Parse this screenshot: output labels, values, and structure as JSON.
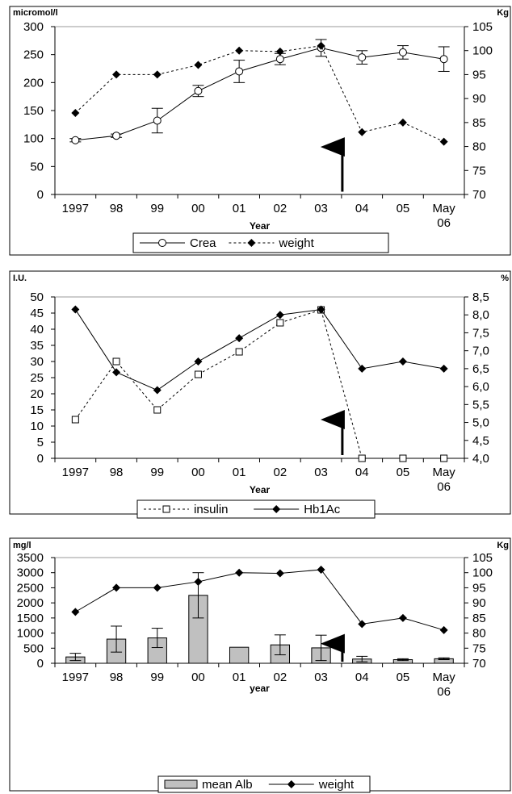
{
  "chart_data": [
    {
      "type": "line",
      "left_unit": "micromol/l",
      "right_unit": "Kg",
      "xlabel": "Year",
      "categories": [
        "1997",
        "98",
        "99",
        "00",
        "01",
        "02",
        "03",
        "04",
        "05",
        "May|06"
      ],
      "left_ticks": [
        "0",
        "50",
        "100",
        "150",
        "200",
        "250",
        "300"
      ],
      "right_ticks": [
        "70",
        "75",
        "80",
        "85",
        "90",
        "95",
        "100",
        "105"
      ],
      "ylim_left": [
        0,
        300
      ],
      "ylim_right": [
        70,
        105
      ],
      "grid": "top line only",
      "legend_placement": "bottom-center",
      "series": [
        {
          "name": "Crea",
          "axis": "left",
          "style": "solid-open-circle",
          "values": [
            97,
            105,
            132,
            185,
            220,
            242,
            262,
            245,
            254,
            242
          ],
          "error": [
            3,
            3,
            22,
            10,
            20,
            10,
            15,
            12,
            12,
            22
          ]
        },
        {
          "name": "weight",
          "axis": "right",
          "style": "dotted-diamond",
          "values": [
            87,
            95,
            95,
            97,
            100,
            99.8,
            101,
            83,
            85,
            81
          ]
        }
      ],
      "arrow": {
        "x_between": [
          "03",
          "04"
        ],
        "y_from": 5,
        "y_to": 85,
        "axis": "left"
      }
    },
    {
      "type": "line",
      "left_unit": "I.U.",
      "right_unit": "%",
      "xlabel": "Year",
      "categories": [
        "1997",
        "98",
        "99",
        "00",
        "01",
        "02",
        "03",
        "04",
        "05",
        "May|06"
      ],
      "left_ticks": [
        "0",
        "5",
        "10",
        "15",
        "20",
        "25",
        "30",
        "35",
        "40",
        "45",
        "50"
      ],
      "right_ticks": [
        "4,0",
        "4,5",
        "5,0",
        "5,5",
        "6,0",
        "6,5",
        "7,0",
        "7,5",
        "8,0",
        "8,5"
      ],
      "ylim_left": [
        0,
        50
      ],
      "ylim_right": [
        4.0,
        8.5
      ],
      "grid": "top line only",
      "legend_placement": "bottom-center",
      "series": [
        {
          "name": "insulin",
          "axis": "left",
          "style": "dotted-open-square",
          "values": [
            12,
            30,
            15,
            26,
            33,
            42,
            46,
            0,
            0,
            0
          ]
        },
        {
          "name": "Hb1Ac",
          "axis": "right",
          "style": "solid-diamond",
          "values": [
            8.15,
            6.4,
            5.9,
            6.7,
            7.35,
            8.0,
            8.15,
            6.5,
            6.7,
            6.5
          ]
        }
      ],
      "arrow": {
        "x_between": [
          "03",
          "04"
        ],
        "y_from": 1,
        "y_to": 12,
        "axis": "left"
      }
    },
    {
      "type": "bar",
      "left_unit": "mg/l",
      "right_unit": "Kg",
      "xlabel": "year",
      "categories": [
        "1997",
        "98",
        "99",
        "00",
        "01",
        "02",
        "03",
        "04",
        "05",
        "May|06"
      ],
      "left_ticks": [
        "0",
        "500",
        "1000",
        "1500",
        "2000",
        "2500",
        "3000",
        "3500"
      ],
      "right_ticks": [
        "70",
        "75",
        "80",
        "85",
        "90",
        "95",
        "100",
        "105"
      ],
      "ylim_left": [
        0,
        3500
      ],
      "ylim_right": [
        70,
        105
      ],
      "grid": "top line only",
      "legend_placement": "bottom-center",
      "series": [
        {
          "name": "mean Alb",
          "axis": "left",
          "style": "gray-bar",
          "values": [
            210,
            800,
            840,
            2250,
            530,
            610,
            510,
            140,
            120,
            150
          ],
          "error": [
            120,
            430,
            320,
            750,
            0,
            330,
            420,
            90,
            30,
            30
          ]
        },
        {
          "name": "weight",
          "axis": "right",
          "style": "solid-diamond",
          "values": [
            87,
            95,
            95,
            97,
            100,
            99.8,
            101,
            83,
            85,
            81
          ]
        }
      ],
      "arrow": {
        "x_between": [
          "03",
          "04"
        ],
        "y_from": 50,
        "y_to": 650,
        "axis": "left"
      }
    }
  ]
}
